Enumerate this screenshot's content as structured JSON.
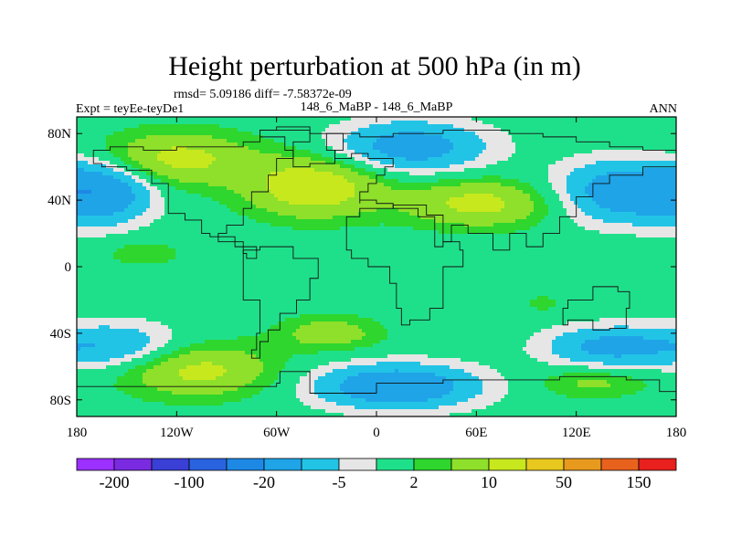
{
  "chart_data": {
    "type": "heatmap",
    "title": "Height perturbation at 500 hPa (in m)",
    "stats": "rmsd= 5.09186 diff= -7.58372e-09",
    "left_label": "Expt = teyEe-teyDe1",
    "center_label": "148_6_MaBP - 148_6_MaBP",
    "right_label": "ANN",
    "x_range": [
      -180,
      180
    ],
    "y_range": [
      -90,
      90
    ],
    "x_ticks": [
      {
        "value": -180,
        "label": "180"
      },
      {
        "value": -120,
        "label": "120W"
      },
      {
        "value": -60,
        "label": "60W"
      },
      {
        "value": 0,
        "label": "0"
      },
      {
        "value": 60,
        "label": "60E"
      },
      {
        "value": 120,
        "label": "120E"
      },
      {
        "value": 180,
        "label": "180"
      }
    ],
    "y_ticks": [
      {
        "value": 80,
        "label": "80N"
      },
      {
        "value": 40,
        "label": "40N"
      },
      {
        "value": 0,
        "label": "0"
      },
      {
        "value": -40,
        "label": "40S"
      },
      {
        "value": -80,
        "label": "80S"
      }
    ],
    "levels": [
      -200,
      -150,
      -100,
      -50,
      -20,
      -10,
      -5,
      -2,
      2,
      5,
      10,
      20,
      50,
      100,
      150,
      200
    ],
    "colorbar_labels": [
      {
        "level": -200,
        "label": "-200"
      },
      {
        "level": -100,
        "label": "-100"
      },
      {
        "level": -20,
        "label": "-20"
      },
      {
        "level": -5,
        "label": "-5"
      },
      {
        "level": 2,
        "label": "2"
      },
      {
        "level": 10,
        "label": "10"
      },
      {
        "level": 50,
        "label": "50"
      },
      {
        "level": 150,
        "label": "150"
      }
    ],
    "colors": [
      "#9b30ff",
      "#7a2be2",
      "#3a3fd6",
      "#2a63e0",
      "#1e88e5",
      "#1fa4e8",
      "#22c4e6",
      "#e6e6e6",
      "#1fe08a",
      "#2ed62e",
      "#8ee02a",
      "#c8e81e",
      "#e8c81e",
      "#e89a1e",
      "#e8621e",
      "#e8201e"
    ],
    "features": [
      {
        "lon": -165,
        "lat": 45,
        "value": -16,
        "r_lon": 30,
        "r_lat": 18
      },
      {
        "lon": -120,
        "lat": 65,
        "value": 12,
        "r_lon": 45,
        "r_lat": 16
      },
      {
        "lon": -38,
        "lat": 48,
        "value": 15,
        "r_lon": 40,
        "r_lat": 18
      },
      {
        "lon": 20,
        "lat": 72,
        "value": -14,
        "r_lon": 45,
        "r_lat": 15
      },
      {
        "lon": 62,
        "lat": 38,
        "value": 12,
        "r_lon": 45,
        "r_lat": 14
      },
      {
        "lon": 148,
        "lat": 45,
        "value": -15,
        "r_lon": 40,
        "r_lat": 18
      },
      {
        "lon": -140,
        "lat": 8,
        "value": 4,
        "r_lon": 24,
        "r_lat": 8
      },
      {
        "lon": -155,
        "lat": -48,
        "value": -10,
        "r_lon": 40,
        "r_lat": 14
      },
      {
        "lon": -108,
        "lat": -62,
        "value": 12,
        "r_lon": 45,
        "r_lat": 16
      },
      {
        "lon": -28,
        "lat": -40,
        "value": 8,
        "r_lon": 30,
        "r_lat": 10
      },
      {
        "lon": 12,
        "lat": -72,
        "value": -17,
        "r_lon": 48,
        "r_lat": 13
      },
      {
        "lon": 140,
        "lat": -48,
        "value": -12,
        "r_lon": 38,
        "r_lat": 12
      },
      {
        "lon": 130,
        "lat": -70,
        "value": 6,
        "r_lon": 32,
        "r_lat": 9
      },
      {
        "lon": 100,
        "lat": -22,
        "value": 3,
        "r_lon": 12,
        "r_lat": 6
      }
    ]
  }
}
